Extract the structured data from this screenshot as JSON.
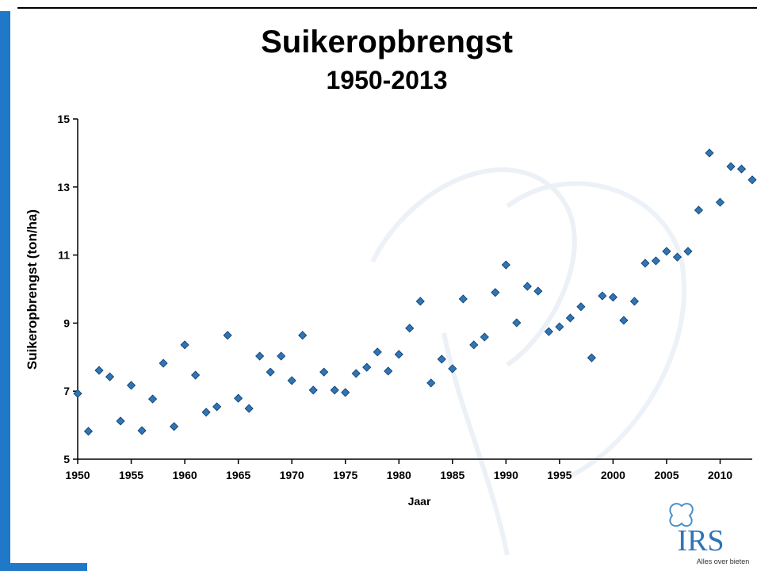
{
  "chart_data": {
    "type": "scatter",
    "title": "Suikeropbrengst",
    "subtitle": "1950-2013",
    "x_label": "Jaar",
    "y_label": "Suikeropbrengst (ton/ha)",
    "x": [
      1950,
      1951,
      1952,
      1953,
      1954,
      1955,
      1956,
      1957,
      1958,
      1959,
      1960,
      1961,
      1962,
      1963,
      1964,
      1965,
      1966,
      1967,
      1968,
      1969,
      1970,
      1971,
      1972,
      1973,
      1974,
      1975,
      1976,
      1977,
      1978,
      1979,
      1980,
      1981,
      1982,
      1983,
      1984,
      1985,
      1986,
      1987,
      1988,
      1989,
      1990,
      1991,
      1992,
      1993,
      1994,
      1995,
      1996,
      1997,
      1998,
      1999,
      2000,
      2001,
      2002,
      2003,
      2004,
      2005,
      2006,
      2007,
      2008,
      2009,
      2010,
      2011,
      2012,
      2013
    ],
    "values": [
      6.93,
      5.82,
      7.61,
      7.42,
      6.12,
      7.17,
      5.84,
      6.77,
      7.82,
      5.96,
      8.36,
      7.47,
      6.38,
      6.54,
      8.64,
      6.79,
      6.49,
      8.03,
      7.56,
      8.03,
      7.31,
      8.64,
      7.03,
      7.56,
      7.03,
      6.96,
      7.52,
      7.7,
      8.15,
      7.59,
      8.08,
      8.85,
      9.64,
      7.24,
      7.94,
      7.66,
      9.71,
      8.36,
      8.59,
      9.9,
      10.71,
      9.01,
      10.08,
      9.94,
      8.75,
      8.89,
      9.15,
      9.48,
      7.98,
      9.8,
      9.76,
      9.08,
      9.64,
      10.76,
      10.83,
      11.11,
      10.94,
      11.11,
      12.32,
      14.0,
      12.55,
      13.6,
      13.53,
      13.21
    ],
    "color": "#2e75b6",
    "xlim": [
      1950,
      2013
    ],
    "xticks": [
      1950,
      1955,
      1960,
      1965,
      1970,
      1975,
      1980,
      1985,
      1990,
      1995,
      2000,
      2005,
      2010
    ],
    "ylim": [
      5,
      15
    ],
    "yticks": [
      5,
      7,
      9,
      11,
      13,
      15
    ],
    "grid": false
  },
  "logo": {
    "name": "IRS",
    "tagline": "Alles over bieten"
  }
}
